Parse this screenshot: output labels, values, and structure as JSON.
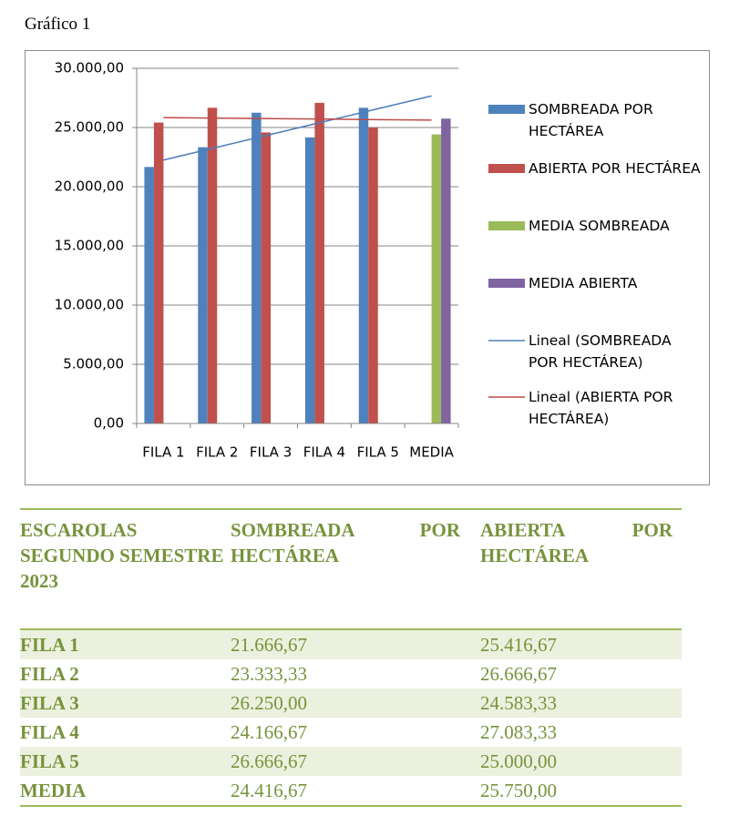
{
  "caption": "Gráfico 1",
  "chart_data": {
    "type": "bar",
    "categories": [
      "FILA 1",
      "FILA 2",
      "FILA 3",
      "FILA 4",
      "FILA 5",
      "MEDIA"
    ],
    "series": [
      {
        "name": "SOMBREADA POR HECTÁREA",
        "color": "#4f81bd",
        "values": [
          21666.67,
          23333.33,
          26250,
          24166.67,
          26666.67,
          null
        ]
      },
      {
        "name": "ABIERTA POR HECTÁREA",
        "color": "#c0504d",
        "values": [
          25416.67,
          26666.67,
          24583.33,
          27083.33,
          25000,
          null
        ]
      },
      {
        "name": "MEDIA SOMBREADA",
        "color": "#9bbb59",
        "values": [
          null,
          null,
          null,
          null,
          null,
          24416.67
        ]
      },
      {
        "name": "MEDIA ABIERTA",
        "color": "#8064a2",
        "values": [
          null,
          null,
          null,
          null,
          null,
          25750
        ]
      },
      {
        "name": "Lineal (SOMBREADA POR HECTÁREA)",
        "type": "line",
        "color": "#4a7ebb",
        "values": [
          22250,
          23333.33,
          24416.67,
          25500,
          26583.33,
          27666.67
        ]
      },
      {
        "name": "Lineal (ABIERTA POR HECTÁREA)",
        "type": "line",
        "color": "#be4b48",
        "values": [
          25833.33,
          25791.67,
          25750,
          25708.33,
          25666.67,
          25625
        ]
      }
    ],
    "ylim": [
      0,
      30000
    ],
    "yticks": [
      {
        "value": 0,
        "label": "0,00"
      },
      {
        "value": 5000,
        "label": "5.000,00"
      },
      {
        "value": 10000,
        "label": "10.000,00"
      },
      {
        "value": 15000,
        "label": "15.000,00"
      },
      {
        "value": 20000,
        "label": "20.000,00"
      },
      {
        "value": 25000,
        "label": "25.000,00"
      },
      {
        "value": 30000,
        "label": "30.000,00"
      }
    ],
    "grid": true,
    "legend": "right"
  },
  "table": {
    "header": [
      "ESCAROLAS SEGUNDO SEMESTRE 2023",
      "SOMBREADA POR HECTÁREA",
      "ABIERTA POR HECTÁREA"
    ],
    "rows": [
      [
        "FILA 1",
        "21.666,67",
        "25.416,67"
      ],
      [
        "FILA 2",
        "23.333,33",
        "26.666,67"
      ],
      [
        "FILA 3",
        "26.250,00",
        "24.583,33"
      ],
      [
        "FILA 4",
        "24.166,67",
        "27.083,33"
      ],
      [
        "FILA 5",
        "26.666,67",
        "25.000,00"
      ],
      [
        "MEDIA",
        "24.416,67",
        "25.750,00"
      ]
    ]
  }
}
